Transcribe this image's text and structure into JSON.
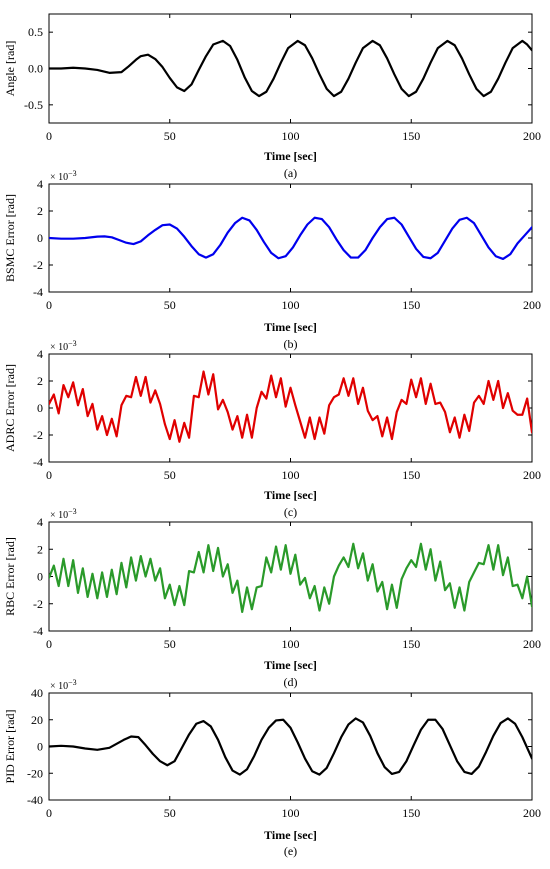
{
  "chart_data": [
    {
      "type": "line",
      "caption": "(a)",
      "xlabel": "Time [sec]",
      "ylabel": "Angle [rad]",
      "xlim": [
        0,
        200
      ],
      "ylim": [
        -0.75,
        0.75
      ],
      "xticks": [
        0,
        50,
        100,
        150,
        200
      ],
      "yticks": [
        -0.5,
        0,
        0.5
      ],
      "ytick_labels": [
        "-0.5",
        "0.0",
        "0.5"
      ],
      "scale_label": "",
      "color": "#000000",
      "series": [
        {
          "x": [
            0,
            5,
            10,
            15,
            20,
            25,
            30,
            33,
            36,
            38,
            41,
            44,
            47,
            50,
            53,
            56,
            59,
            62,
            65,
            68,
            72,
            75,
            78,
            81,
            84,
            87,
            90,
            93,
            96,
            99,
            103,
            106,
            109,
            112,
            115,
            118,
            121,
            124,
            127,
            130,
            134,
            137,
            140,
            143,
            146,
            149,
            152,
            155,
            158,
            161,
            165,
            168,
            171,
            174,
            177,
            180,
            183,
            186,
            189,
            192,
            196,
            198,
            200
          ],
          "y": [
            0,
            0,
            0.01,
            0,
            -0.02,
            -0.06,
            -0.05,
            0.03,
            0.12,
            0.17,
            0.19,
            0.13,
            0.02,
            -0.13,
            -0.26,
            -0.31,
            -0.22,
            -0.02,
            0.17,
            0.33,
            0.38,
            0.31,
            0.12,
            -0.12,
            -0.31,
            -0.38,
            -0.32,
            -0.14,
            0.08,
            0.28,
            0.38,
            0.32,
            0.14,
            -0.08,
            -0.28,
            -0.38,
            -0.32,
            -0.14,
            0.08,
            0.28,
            0.38,
            0.32,
            0.14,
            -0.08,
            -0.28,
            -0.38,
            -0.32,
            -0.14,
            0.08,
            0.28,
            0.38,
            0.32,
            0.14,
            -0.08,
            -0.28,
            -0.38,
            -0.32,
            -0.14,
            0.08,
            0.28,
            0.38,
            0.33,
            0.25
          ]
        }
      ]
    },
    {
      "type": "line",
      "caption": "(b)",
      "xlabel": "Time [sec]",
      "ylabel": "BSMC Error [rad]",
      "xlim": [
        0,
        200
      ],
      "ylim": [
        -4,
        4
      ],
      "xticks": [
        0,
        50,
        100,
        150,
        200
      ],
      "yticks": [
        -4,
        -2,
        0,
        2,
        4
      ],
      "ytick_labels": [
        "-4",
        "-2",
        "0",
        "2",
        "4"
      ],
      "scale_label": "× 10",
      "scale_exp": "−3",
      "color": "#0000ee",
      "series": [
        {
          "x": [
            0,
            5,
            10,
            15,
            20,
            23,
            26,
            29,
            32,
            35,
            38,
            41,
            44,
            47,
            50,
            53,
            56,
            59,
            62,
            65,
            68,
            71,
            74,
            77,
            80,
            83,
            86,
            89,
            92,
            95,
            98,
            101,
            104,
            107,
            110,
            113,
            116,
            119,
            122,
            125,
            128,
            131,
            134,
            137,
            140,
            143,
            146,
            149,
            152,
            155,
            158,
            161,
            164,
            167,
            170,
            173,
            176,
            179,
            182,
            185,
            188,
            191,
            194,
            197,
            200
          ],
          "y": [
            0,
            -0.05,
            -0.05,
            0,
            0.1,
            0.12,
            0.05,
            -0.15,
            -0.35,
            -0.45,
            -0.25,
            0.2,
            0.6,
            0.95,
            1.0,
            0.7,
            0.1,
            -0.6,
            -1.2,
            -1.45,
            -1.2,
            -0.5,
            0.4,
            1.1,
            1.5,
            1.3,
            0.6,
            -0.3,
            -1.1,
            -1.5,
            -1.35,
            -0.7,
            0.2,
            1.0,
            1.5,
            1.4,
            0.8,
            -0.1,
            -0.9,
            -1.45,
            -1.45,
            -0.9,
            0.0,
            0.8,
            1.4,
            1.5,
            1.0,
            0.1,
            -0.8,
            -1.4,
            -1.5,
            -1.1,
            -0.2,
            0.7,
            1.35,
            1.5,
            1.1,
            0.2,
            -0.7,
            -1.35,
            -1.55,
            -1.2,
            -0.4,
            0.2,
            0.8
          ]
        }
      ]
    },
    {
      "type": "line",
      "caption": "(c)",
      "xlabel": "Time [sec]",
      "ylabel": "ADRC Error [rad]",
      "xlim": [
        0,
        200
      ],
      "ylim": [
        -4,
        4
      ],
      "xticks": [
        0,
        50,
        100,
        150,
        200
      ],
      "yticks": [
        -4,
        -2,
        0,
        2,
        4
      ],
      "ytick_labels": [
        "-4",
        "-2",
        "0",
        "2",
        "4"
      ],
      "scale_label": "× 10",
      "scale_exp": "−3",
      "color": "#e00000",
      "series": [
        {
          "x": [
            0,
            2,
            4,
            6,
            8,
            10,
            12,
            14,
            16,
            18,
            20,
            22,
            24,
            26,
            28,
            30,
            32,
            34,
            36,
            38,
            40,
            42,
            44,
            46,
            48,
            50,
            52,
            54,
            56,
            58,
            60,
            62,
            64,
            66,
            68,
            70,
            72,
            74,
            76,
            78,
            80,
            82,
            84,
            86,
            88,
            90,
            92,
            94,
            96,
            98,
            100,
            102,
            104,
            106,
            108,
            110,
            112,
            114,
            116,
            118,
            120,
            122,
            124,
            126,
            128,
            130,
            132,
            134,
            136,
            138,
            140,
            142,
            144,
            146,
            148,
            150,
            152,
            154,
            156,
            158,
            160,
            162,
            164,
            166,
            168,
            170,
            172,
            174,
            176,
            178,
            180,
            182,
            184,
            186,
            188,
            190,
            192,
            194,
            196,
            198,
            200
          ],
          "y": [
            0.3,
            1.0,
            -0.4,
            1.7,
            0.8,
            1.9,
            0.2,
            1.4,
            -0.6,
            0.3,
            -1.6,
            -0.6,
            -2.0,
            -0.8,
            -2.1,
            0.2,
            0.9,
            0.8,
            2.3,
            0.9,
            2.3,
            0.4,
            1.3,
            0.3,
            -1.2,
            -2.3,
            -0.9,
            -2.5,
            -1.1,
            -2.2,
            0.9,
            0.8,
            2.7,
            1.0,
            2.5,
            -0.1,
            0.6,
            -0.3,
            -1.6,
            -0.6,
            -2.2,
            -0.5,
            -2.2,
            0.0,
            1.2,
            0.7,
            2.4,
            0.8,
            2.2,
            0.1,
            1.5,
            0.2,
            -1.0,
            -2.2,
            -0.7,
            -2.3,
            -0.7,
            -1.9,
            0.2,
            0.8,
            1.0,
            2.2,
            0.9,
            2.2,
            0.3,
            1.5,
            -0.2,
            -0.9,
            -0.6,
            -2.1,
            -0.7,
            -2.3,
            -0.3,
            0.6,
            0.3,
            2.1,
            0.8,
            2.2,
            0.3,
            1.8,
            0.3,
            0.4,
            -0.3,
            -1.8,
            -0.7,
            -2.2,
            -0.5,
            -1.7,
            0.4,
            0.9,
            0.3,
            2.0,
            0.6,
            2.0,
            0.0,
            1.1,
            -0.2,
            -0.5,
            -0.5,
            0.7,
            -1.8
          ]
        }
      ]
    },
    {
      "type": "line",
      "caption": "(d)",
      "xlabel": "Time [sec]",
      "ylabel": "RBC Error [rad]",
      "xlim": [
        0,
        200
      ],
      "ylim": [
        -4,
        4
      ],
      "xticks": [
        0,
        50,
        100,
        150,
        200
      ],
      "yticks": [
        -4,
        -2,
        0,
        2,
        4
      ],
      "ytick_labels": [
        "-4",
        "-2",
        "0",
        "2",
        "4"
      ],
      "scale_label": "× 10",
      "scale_exp": "−3",
      "color": "#2a9a2a",
      "series": [
        {
          "x": [
            0,
            2,
            4,
            6,
            8,
            10,
            12,
            14,
            16,
            18,
            20,
            22,
            24,
            26,
            28,
            30,
            32,
            34,
            36,
            38,
            40,
            42,
            44,
            46,
            48,
            50,
            52,
            54,
            56,
            58,
            60,
            62,
            64,
            66,
            68,
            70,
            72,
            74,
            76,
            78,
            80,
            82,
            84,
            86,
            88,
            90,
            92,
            94,
            96,
            98,
            100,
            102,
            104,
            106,
            108,
            110,
            112,
            114,
            116,
            118,
            120,
            122,
            124,
            126,
            128,
            130,
            132,
            134,
            136,
            138,
            140,
            142,
            144,
            146,
            148,
            150,
            152,
            154,
            156,
            158,
            160,
            162,
            164,
            166,
            168,
            170,
            172,
            174,
            176,
            178,
            180,
            182,
            184,
            186,
            188,
            190,
            192,
            194,
            196,
            198,
            200
          ],
          "y": [
            -0.1,
            0.8,
            -0.7,
            1.3,
            -0.7,
            1.2,
            -1.2,
            0.6,
            -1.5,
            0.2,
            -1.6,
            0.3,
            -1.5,
            0.5,
            -1.3,
            1.0,
            -0.8,
            1.4,
            -0.3,
            1.5,
            0.0,
            1.3,
            -0.3,
            0.6,
            -1.6,
            -0.6,
            -2.1,
            -0.7,
            -2.1,
            0.4,
            0.3,
            1.8,
            0.3,
            2.3,
            0.4,
            2.1,
            0.0,
            0.9,
            -1.2,
            -0.3,
            -2.6,
            -0.8,
            -2.4,
            -0.8,
            -0.7,
            1.4,
            0.3,
            2.2,
            0.5,
            2.3,
            0.2,
            1.6,
            -0.6,
            -0.1,
            -1.6,
            -0.7,
            -2.5,
            -0.8,
            -2.0,
            0.0,
            0.8,
            1.4,
            0.7,
            2.4,
            0.6,
            1.7,
            -0.3,
            0.9,
            -1.1,
            -0.4,
            -2.4,
            -0.6,
            -2.3,
            -0.2,
            0.6,
            1.2,
            0.7,
            2.4,
            0.5,
            2.0,
            -0.3,
            1.1,
            -1.0,
            -0.5,
            -2.3,
            -0.8,
            -2.5,
            -0.4,
            0.3,
            1.0,
            0.9,
            2.3,
            0.5,
            2.3,
            0.1,
            1.4,
            -0.7,
            -0.6,
            -1.6,
            0.0,
            -2.2
          ]
        }
      ]
    },
    {
      "type": "line",
      "caption": "(e)",
      "xlabel": "Time [sec]",
      "ylabel": "PID Error [rad]",
      "xlim": [
        0,
        200
      ],
      "ylim": [
        -40,
        40
      ],
      "xticks": [
        0,
        50,
        100,
        150,
        200
      ],
      "yticks": [
        -40,
        -20,
        0,
        20,
        40
      ],
      "ytick_labels": [
        "-40",
        "-20",
        "0",
        "20",
        "40"
      ],
      "scale_label": "× 10",
      "scale_exp": "−3",
      "color": "#000000",
      "series": [
        {
          "x": [
            0,
            5,
            10,
            15,
            20,
            25,
            28,
            31,
            34,
            37,
            40,
            43,
            46,
            49,
            52,
            55,
            58,
            61,
            64,
            67,
            70,
            73,
            76,
            79,
            82,
            85,
            88,
            91,
            94,
            97,
            100,
            103,
            106,
            109,
            112,
            115,
            118,
            121,
            124,
            127,
            130,
            133,
            136,
            139,
            142,
            145,
            148,
            151,
            154,
            157,
            160,
            163,
            166,
            169,
            172,
            175,
            178,
            181,
            184,
            187,
            190,
            193,
            196,
            200
          ],
          "y": [
            0,
            0.5,
            0,
            -1.5,
            -2.5,
            -1.0,
            2.0,
            5.0,
            7.5,
            7.0,
            1.0,
            -5.5,
            -11.0,
            -14.0,
            -11.0,
            -1.0,
            9.0,
            17.0,
            19.0,
            15.0,
            5.0,
            -8.0,
            -18.0,
            -21.0,
            -17.0,
            -7.0,
            5.0,
            14.0,
            19.5,
            20.0,
            14.0,
            3.0,
            -9.0,
            -18.5,
            -21.0,
            -16.0,
            -5.0,
            7.0,
            16.5,
            21.0,
            18.0,
            8.0,
            -5.0,
            -15.5,
            -20.5,
            -19.0,
            -11.0,
            1.0,
            12.5,
            20.0,
            20.0,
            13.0,
            1.0,
            -11.0,
            -19.0,
            -20.5,
            -15.0,
            -4.0,
            8.0,
            17.5,
            21.0,
            17.0,
            7.0,
            -9.0
          ]
        }
      ]
    }
  ]
}
